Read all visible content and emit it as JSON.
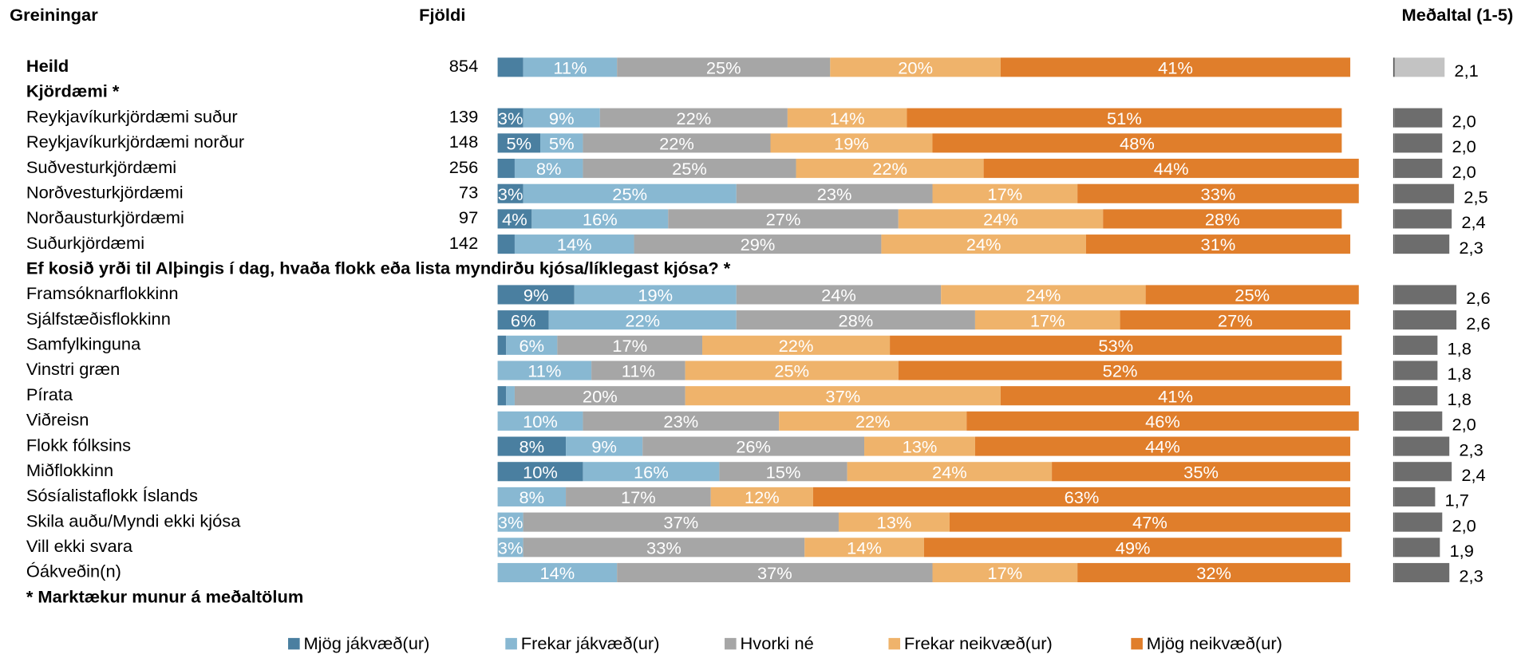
{
  "chart_data": {
    "type": "stacked_bar",
    "title": "Greiningar",
    "count_header": "Fjöldi",
    "mean_header": "Meðaltal (1-5)",
    "xlim": [
      0,
      100
    ],
    "mean_xlim": [
      0,
      5
    ],
    "mean_color": "#6d6d6d",
    "total_mean_color": "#c3c3c3",
    "series": [
      {
        "name": "Mjög jákvæð(ur)",
        "color": "#4a7fa0"
      },
      {
        "name": "Frekar jákvæð(ur)",
        "color": "#88b8d2"
      },
      {
        "name": "Hvorki né",
        "color": "#a6a6a6"
      },
      {
        "name": "Frekar neikvæð(ur)",
        "color": "#efb36b"
      },
      {
        "name": "Mjög neikvæð(ur)",
        "color": "#e07e2b"
      }
    ],
    "total": {
      "label": "Heild",
      "count": 854,
      "values": [
        3,
        11,
        25,
        20,
        41
      ],
      "value_labels": [
        null,
        "11%",
        "25%",
        "20%",
        "41%"
      ],
      "mean": 2.1,
      "mean_label": "2,1"
    },
    "groups": [
      {
        "title": "Kjördæmi *",
        "rows": [
          {
            "label": "Reykjavíkurkjördæmi suður",
            "count": 139,
            "values": [
              3,
              9,
              22,
              14,
              51
            ],
            "value_labels": [
              "3%",
              "9%",
              "22%",
              "14%",
              "51%"
            ],
            "mean": 2.0,
            "mean_label": "2,0"
          },
          {
            "label": "Reykjavíkurkjördæmi norður",
            "count": 148,
            "values": [
              5,
              5,
              22,
              19,
              48
            ],
            "value_labels": [
              "5%",
              "5%",
              "22%",
              "19%",
              "48%"
            ],
            "mean": 2.0,
            "mean_label": "2,0"
          },
          {
            "label": "Suðvesturkjördæmi",
            "count": 256,
            "values": [
              2,
              8,
              25,
              22,
              44
            ],
            "value_labels": [
              null,
              "8%",
              "25%",
              "22%",
              "44%"
            ],
            "mean": 2.0,
            "mean_label": "2,0"
          },
          {
            "label": "Norðvesturkjördæmi",
            "count": 73,
            "values": [
              3,
              25,
              23,
              17,
              33
            ],
            "value_labels": [
              "3%",
              "25%",
              "23%",
              "17%",
              "33%"
            ],
            "mean": 2.5,
            "mean_label": "2,5"
          },
          {
            "label": "Norðausturkjördæmi",
            "count": 97,
            "values": [
              4,
              16,
              27,
              24,
              28
            ],
            "value_labels": [
              "4%",
              "16%",
              "27%",
              "24%",
              "28%"
            ],
            "mean": 2.4,
            "mean_label": "2,4"
          },
          {
            "label": "Suðurkjördæmi",
            "count": 142,
            "values": [
              2,
              14,
              29,
              24,
              31
            ],
            "value_labels": [
              null,
              "14%",
              "29%",
              "24%",
              "31%"
            ],
            "mean": 2.3,
            "mean_label": "2,3"
          }
        ]
      },
      {
        "title": "Ef kosið yrði til Alþingis í dag, hvaða flokk eða lista myndirðu kjósa/líklegast kjósa? *",
        "rows": [
          {
            "label": "Framsóknarflokkinn",
            "values": [
              9,
              19,
              24,
              24,
              25
            ],
            "value_labels": [
              "9%",
              "19%",
              "24%",
              "24%",
              "25%"
            ],
            "mean": 2.6,
            "mean_label": "2,6"
          },
          {
            "label": "Sjálfstæðisflokkinn",
            "values": [
              6,
              22,
              28,
              17,
              27
            ],
            "value_labels": [
              "6%",
              "22%",
              "28%",
              "17%",
              "27%"
            ],
            "mean": 2.6,
            "mean_label": "2,6"
          },
          {
            "label": "Samfylkinguna",
            "values": [
              1,
              6,
              17,
              22,
              53
            ],
            "value_labels": [
              null,
              "6%",
              "17%",
              "22%",
              "53%"
            ],
            "mean": 1.8,
            "mean_label": "1,8"
          },
          {
            "label": "Vinstri græn",
            "values": [
              0,
              11,
              11,
              25,
              52
            ],
            "value_labels": [
              null,
              "11%",
              "11%",
              "25%",
              "52%"
            ],
            "mean": 1.8,
            "mean_label": "1,8"
          },
          {
            "label": "Pírata",
            "values": [
              1,
              1,
              20,
              37,
              41
            ],
            "value_labels": [
              null,
              null,
              "20%",
              "37%",
              "41%"
            ],
            "mean": 1.8,
            "mean_label": "1,8"
          },
          {
            "label": "Viðreisn",
            "values": [
              0,
              10,
              23,
              22,
              46
            ],
            "value_labels": [
              null,
              "10%",
              "23%",
              "22%",
              "46%"
            ],
            "mean": 2.0,
            "mean_label": "2,0"
          },
          {
            "label": "Flokk fólksins",
            "values": [
              8,
              9,
              26,
              13,
              44
            ],
            "value_labels": [
              "8%",
              "9%",
              "26%",
              "13%",
              "44%"
            ],
            "mean": 2.3,
            "mean_label": "2,3"
          },
          {
            "label": "Miðflokkinn",
            "values": [
              10,
              16,
              15,
              24,
              35
            ],
            "value_labels": [
              "10%",
              "16%",
              "15%",
              "24%",
              "35%"
            ],
            "mean": 2.4,
            "mean_label": "2,4"
          },
          {
            "label": "Sósíalistaflokk Íslands",
            "values": [
              0,
              8,
              17,
              12,
              63
            ],
            "value_labels": [
              null,
              "8%",
              "17%",
              "12%",
              "63%"
            ],
            "mean": 1.7,
            "mean_label": "1,7"
          },
          {
            "label": "Skila auðu/Myndi ekki kjósa",
            "values": [
              0,
              3,
              37,
              13,
              47
            ],
            "value_labels": [
              null,
              "3%",
              "37%",
              "13%",
              "47%"
            ],
            "mean": 2.0,
            "mean_label": "2,0"
          },
          {
            "label": "Vill ekki svara",
            "values": [
              0,
              3,
              33,
              14,
              49
            ],
            "value_labels": [
              null,
              "3%",
              "33%",
              "14%",
              "49%"
            ],
            "mean": 1.9,
            "mean_label": "1,9"
          },
          {
            "label": "Óákveðin(n)",
            "values": [
              0,
              14,
              37,
              17,
              32
            ],
            "value_labels": [
              null,
              "14%",
              "37%",
              "17%",
              "32%"
            ],
            "mean": 2.3,
            "mean_label": "2,3"
          }
        ]
      }
    ],
    "footnote": "* Marktækur munur á meðaltölum"
  }
}
